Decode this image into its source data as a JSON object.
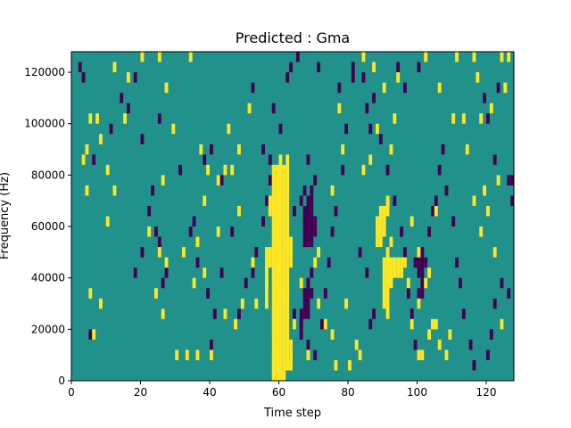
{
  "chart_data": {
    "type": "heatmap",
    "title": "Predicted : Gma",
    "xlabel": "Time step",
    "ylabel": "Frequency (Hz)",
    "xlim": [
      0,
      128
    ],
    "ylim": [
      0,
      128000
    ],
    "x_ticks": [
      {
        "value": 0,
        "label": "0"
      },
      {
        "value": 20,
        "label": "20"
      },
      {
        "value": 40,
        "label": "40"
      },
      {
        "value": 60,
        "label": "60"
      },
      {
        "value": 80,
        "label": "80"
      },
      {
        "value": 100,
        "label": "100"
      },
      {
        "value": 120,
        "label": "120"
      }
    ],
    "y_ticks": [
      {
        "value": 0,
        "label": "0"
      },
      {
        "value": 20000,
        "label": "20000"
      },
      {
        "value": 40000,
        "label": "40000"
      },
      {
        "value": 60000,
        "label": "60000"
      },
      {
        "value": 80000,
        "label": "80000"
      },
      {
        "value": 100000,
        "label": "100000"
      },
      {
        "value": 120000,
        "label": "120000"
      }
    ],
    "colormap": "viridis",
    "colors": {
      "low": "#440154",
      "mid": "#21918c",
      "high": "#fde725"
    },
    "background_value": "mid",
    "cell": {
      "time_steps": 1,
      "freq_hz": 4000
    },
    "cells_high": [
      [
        58,
        0,
        84000
      ],
      [
        59,
        0,
        84000
      ],
      [
        60,
        0,
        88000
      ],
      [
        61,
        0,
        84000
      ],
      [
        62,
        4000,
        84000
      ],
      [
        63,
        4000,
        12000
      ],
      [
        63,
        44000,
        12000
      ],
      [
        56,
        28000,
        24000
      ],
      [
        57,
        44000,
        8000
      ],
      [
        57,
        64000,
        8000
      ],
      [
        90,
        28000,
        20000
      ],
      [
        91,
        24000,
        28000
      ],
      [
        92,
        36000,
        12000
      ],
      [
        93,
        40000,
        8000
      ],
      [
        94,
        40000,
        8000
      ],
      [
        95,
        40000,
        8000
      ],
      [
        88,
        52000,
        12000
      ],
      [
        89,
        52000,
        16000
      ],
      [
        90,
        56000,
        12000
      ],
      [
        91,
        64000,
        8000
      ],
      [
        6,
        16000,
        4000
      ],
      [
        5,
        32000,
        4000
      ],
      [
        8,
        28000,
        4000
      ],
      [
        12,
        72000,
        4000
      ],
      [
        10,
        60000,
        4000
      ],
      [
        5,
        100000,
        4000
      ],
      [
        3,
        84000,
        4000
      ],
      [
        20,
        124000,
        4000
      ],
      [
        26,
        76000,
        4000
      ],
      [
        27,
        44000,
        4000
      ],
      [
        36,
        8000,
        4000
      ],
      [
        33,
        8000,
        4000
      ],
      [
        30,
        8000,
        4000
      ],
      [
        40,
        8000,
        4000
      ],
      [
        44,
        24000,
        4000
      ],
      [
        47,
        20000,
        4000
      ],
      [
        49,
        28000,
        4000
      ],
      [
        46,
        80000,
        4000
      ],
      [
        48,
        88000,
        4000
      ],
      [
        48,
        64000,
        4000
      ],
      [
        42,
        76000,
        4000
      ],
      [
        42,
        56000,
        4000
      ],
      [
        38,
        68000,
        4000
      ],
      [
        38,
        40000,
        4000
      ],
      [
        35,
        36000,
        4000
      ],
      [
        24,
        32000,
        4000
      ],
      [
        26,
        24000,
        4000
      ],
      [
        36,
        52000,
        4000
      ],
      [
        32,
        48000,
        4000
      ],
      [
        25,
        48000,
        4000
      ],
      [
        22,
        56000,
        4000
      ],
      [
        29,
        96000,
        4000
      ],
      [
        27,
        112000,
        4000
      ],
      [
        25,
        124000,
        4000
      ],
      [
        34,
        124000,
        4000
      ],
      [
        16,
        116000,
        4000
      ],
      [
        12,
        120000,
        4000
      ],
      [
        8,
        92000,
        4000
      ],
      [
        10,
        80000,
        4000
      ],
      [
        7,
        100000,
        4000
      ],
      [
        4,
        72000,
        4000
      ],
      [
        4,
        88000,
        4000
      ],
      [
        15,
        100000,
        4000
      ],
      [
        51,
        104000,
        4000
      ],
      [
        45,
        96000,
        4000
      ],
      [
        39,
        80000,
        4000
      ],
      [
        44,
        80000,
        4000
      ],
      [
        37,
        88000,
        4000
      ],
      [
        71,
        48000,
        4000
      ],
      [
        71,
        28000,
        4000
      ],
      [
        73,
        20000,
        4000
      ],
      [
        75,
        16000,
        4000
      ],
      [
        76,
        4000,
        4000
      ],
      [
        79,
        28000,
        4000
      ],
      [
        80,
        4000,
        4000
      ],
      [
        82,
        12000,
        4000
      ],
      [
        83,
        8000,
        4000
      ],
      [
        75,
        72000,
        4000
      ],
      [
        77,
        104000,
        4000
      ],
      [
        78,
        88000,
        4000
      ],
      [
        84,
        124000,
        4000
      ],
      [
        87,
        120000,
        4000
      ],
      [
        84,
        80000,
        4000
      ],
      [
        86,
        84000,
        4000
      ],
      [
        88,
        96000,
        4000
      ],
      [
        90,
        112000,
        4000
      ],
      [
        92,
        88000,
        4000
      ],
      [
        94,
        116000,
        4000
      ],
      [
        93,
        100000,
        4000
      ],
      [
        90,
        64000,
        4000
      ],
      [
        92,
        52000,
        4000
      ],
      [
        98,
        20000,
        4000
      ],
      [
        100,
        8000,
        4000
      ],
      [
        101,
        8000,
        4000
      ],
      [
        103,
        16000,
        4000
      ],
      [
        105,
        20000,
        4000
      ],
      [
        106,
        12000,
        4000
      ],
      [
        108,
        8000,
        4000
      ],
      [
        109,
        16000,
        4000
      ],
      [
        100,
        48000,
        4000
      ],
      [
        102,
        36000,
        4000
      ],
      [
        103,
        40000,
        4000
      ],
      [
        104,
        20000,
        4000
      ],
      [
        105,
        64000,
        4000
      ],
      [
        102,
        124000,
        4000
      ],
      [
        106,
        112000,
        4000
      ],
      [
        111,
        124000,
        4000
      ],
      [
        113,
        100000,
        4000
      ],
      [
        114,
        88000,
        4000
      ],
      [
        116,
        68000,
        4000
      ],
      [
        118,
        56000,
        4000
      ],
      [
        119,
        72000,
        4000
      ],
      [
        120,
        64000,
        4000
      ],
      [
        122,
        48000,
        4000
      ],
      [
        124,
        20000,
        4000
      ],
      [
        117,
        116000,
        4000
      ],
      [
        121,
        104000,
        4000
      ],
      [
        123,
        76000,
        4000
      ],
      [
        125,
        112000,
        4000
      ],
      [
        126,
        124000,
        4000
      ],
      [
        124,
        124000,
        4000
      ],
      [
        116,
        124000,
        4000
      ],
      [
        118,
        100000,
        4000
      ],
      [
        110,
        100000,
        4000
      ],
      [
        96,
        44000,
        4000
      ],
      [
        97,
        36000,
        4000
      ],
      [
        98,
        60000,
        4000
      ],
      [
        100,
        28000,
        4000
      ],
      [
        64,
        20000,
        4000
      ],
      [
        66,
        36000,
        4000
      ],
      [
        68,
        8000,
        4000
      ],
      [
        70,
        44000,
        4000
      ],
      [
        60,
        32000,
        4000
      ],
      [
        56,
        36000,
        4000
      ],
      [
        53,
        28000,
        4000
      ],
      [
        52,
        44000,
        4000
      ]
    ],
    "cells_low": [
      [
        67,
        52000,
        16000
      ],
      [
        68,
        52000,
        20000
      ],
      [
        69,
        52000,
        24000
      ],
      [
        66,
        20000,
        8000
      ],
      [
        67,
        24000,
        12000
      ],
      [
        68,
        24000,
        8000
      ],
      [
        67,
        32000,
        4000
      ],
      [
        68,
        32000,
        4000
      ],
      [
        69,
        32000,
        4000
      ],
      [
        66,
        68000,
        4000
      ],
      [
        67,
        72000,
        4000
      ],
      [
        68,
        84000,
        4000
      ],
      [
        68,
        36000,
        4000
      ],
      [
        69,
        40000,
        4000
      ],
      [
        70,
        56000,
        8000
      ],
      [
        70,
        76000,
        4000
      ],
      [
        100,
        28000,
        8000
      ],
      [
        101,
        32000,
        16000
      ],
      [
        100,
        40000,
        8000
      ],
      [
        102,
        44000,
        4000
      ],
      [
        99,
        44000,
        4000
      ],
      [
        5,
        16000,
        4000
      ],
      [
        6,
        84000,
        4000
      ],
      [
        3,
        84000,
        4000
      ],
      [
        2,
        120000,
        4000
      ],
      [
        3,
        116000,
        4000
      ],
      [
        18,
        116000,
        4000
      ],
      [
        16,
        104000,
        4000
      ],
      [
        14,
        108000,
        4000
      ],
      [
        11,
        96000,
        4000
      ],
      [
        25,
        100000,
        4000
      ],
      [
        20,
        92000,
        4000
      ],
      [
        23,
        72000,
        4000
      ],
      [
        22,
        64000,
        4000
      ],
      [
        20,
        48000,
        4000
      ],
      [
        18,
        40000,
        4000
      ],
      [
        26,
        36000,
        4000
      ],
      [
        27,
        40000,
        4000
      ],
      [
        24,
        56000,
        4000
      ],
      [
        25,
        52000,
        4000
      ],
      [
        31,
        80000,
        4000
      ],
      [
        40,
        88000,
        4000
      ],
      [
        38,
        84000,
        4000
      ],
      [
        43,
        76000,
        4000
      ],
      [
        34,
        56000,
        4000
      ],
      [
        36,
        44000,
        4000
      ],
      [
        35,
        60000,
        4000
      ],
      [
        39,
        32000,
        4000
      ],
      [
        41,
        24000,
        4000
      ],
      [
        40,
        12000,
        4000
      ],
      [
        43,
        40000,
        4000
      ],
      [
        46,
        56000,
        4000
      ],
      [
        48,
        24000,
        4000
      ],
      [
        50,
        36000,
        4000
      ],
      [
        52,
        40000,
        4000
      ],
      [
        53,
        48000,
        4000
      ],
      [
        55,
        60000,
        4000
      ],
      [
        58,
        12000,
        4000
      ],
      [
        60,
        4000,
        4000
      ],
      [
        63,
        8000,
        4000
      ],
      [
        64,
        24000,
        4000
      ],
      [
        63,
        120000,
        4000
      ],
      [
        52,
        112000,
        4000
      ],
      [
        55,
        88000,
        4000
      ],
      [
        57,
        76000,
        4000
      ],
      [
        60,
        52000,
        4000
      ],
      [
        62,
        44000,
        4000
      ],
      [
        64,
        64000,
        4000
      ],
      [
        66,
        16000,
        4000
      ],
      [
        68,
        12000,
        4000
      ],
      [
        70,
        8000,
        4000
      ],
      [
        72,
        20000,
        4000
      ],
      [
        73,
        32000,
        4000
      ],
      [
        74,
        44000,
        4000
      ],
      [
        75,
        56000,
        4000
      ],
      [
        76,
        64000,
        4000
      ],
      [
        78,
        80000,
        4000
      ],
      [
        79,
        96000,
        4000
      ],
      [
        77,
        112000,
        4000
      ],
      [
        81,
        116000,
        4000
      ],
      [
        81,
        120000,
        4000
      ],
      [
        87,
        108000,
        4000
      ],
      [
        89,
        92000,
        4000
      ],
      [
        91,
        80000,
        4000
      ],
      [
        93,
        68000,
        4000
      ],
      [
        95,
        56000,
        4000
      ],
      [
        96,
        48000,
        4000
      ],
      [
        97,
        32000,
        4000
      ],
      [
        98,
        24000,
        4000
      ],
      [
        99,
        12000,
        4000
      ],
      [
        101,
        48000,
        4000
      ],
      [
        103,
        56000,
        4000
      ],
      [
        104,
        64000,
        4000
      ],
      [
        105,
        68000,
        4000
      ],
      [
        106,
        80000,
        4000
      ],
      [
        107,
        88000,
        4000
      ],
      [
        108,
        72000,
        4000
      ],
      [
        110,
        60000,
        4000
      ],
      [
        111,
        44000,
        4000
      ],
      [
        112,
        36000,
        4000
      ],
      [
        113,
        24000,
        4000
      ],
      [
        115,
        12000,
        4000
      ],
      [
        116,
        4000,
        4000
      ],
      [
        120,
        8000,
        4000
      ],
      [
        121,
        16000,
        4000
      ],
      [
        122,
        28000,
        4000
      ],
      [
        124,
        36000,
        4000
      ],
      [
        126,
        32000,
        4000
      ],
      [
        127,
        68000,
        4000
      ],
      [
        127,
        76000,
        4000
      ],
      [
        126,
        76000,
        4000
      ],
      [
        122,
        84000,
        4000
      ],
      [
        120,
        100000,
        4000
      ],
      [
        123,
        112000,
        4000
      ],
      [
        119,
        108000,
        4000
      ],
      [
        100,
        120000,
        4000
      ],
      [
        96,
        112000,
        4000
      ],
      [
        94,
        120000,
        4000
      ],
      [
        86,
        96000,
        4000
      ],
      [
        85,
        104000,
        4000
      ],
      [
        84,
        116000,
        4000
      ],
      [
        71,
        120000,
        4000
      ],
      [
        65,
        124000,
        4000
      ],
      [
        62,
        116000,
        4000
      ],
      [
        60,
        96000,
        4000
      ],
      [
        58,
        104000,
        4000
      ],
      [
        57,
        84000,
        4000
      ],
      [
        56,
        68000,
        4000
      ],
      [
        86,
        20000,
        4000
      ],
      [
        87,
        24000,
        4000
      ],
      [
        85,
        40000,
        4000
      ],
      [
        83,
        48000,
        4000
      ]
    ]
  }
}
